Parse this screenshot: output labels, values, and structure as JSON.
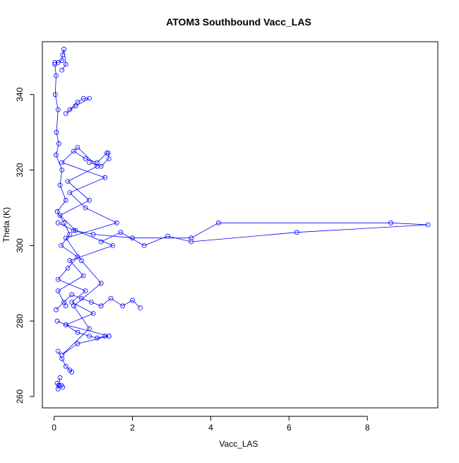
{
  "chart_data": {
    "type": "scatter",
    "title": "ATOM3 Southbound Vacc_LAS",
    "xlabel": "Vacc_LAS",
    "ylabel": "Theta (K)",
    "xlim": [
      -0.3,
      9.8
    ],
    "ylim": [
      257,
      354
    ],
    "xticks": [
      0,
      2,
      4,
      6,
      8
    ],
    "yticks": [
      260,
      280,
      300,
      320,
      340
    ],
    "grid": false,
    "legend": "none",
    "color": "#0000ff",
    "marker": "open-circle",
    "connected": true,
    "series": [
      {
        "x": [
          0.02,
          0.05,
          0.03,
          0.1,
          0.06,
          0.12,
          0.05,
          0.2,
          0.15,
          0.3,
          0.08,
          0.25,
          0.4,
          0.18,
          0.6,
          0.35,
          0.1,
          0.8,
          0.45,
          1.0,
          0.3,
          1.4,
          0.6,
          0.2,
          0.9,
          0.5,
          1.2,
          0.7,
          0.3,
          1.6,
          0.8,
          0.4,
          1.3,
          0.2,
          0.6,
          1.1,
          0.35,
          0.9,
          0.15,
          0.55,
          1.5,
          0.4,
          0.75,
          0.1,
          0.3
        ],
        "y": [
          348,
          345,
          340,
          336,
          330,
          327,
          324,
          320,
          316,
          312,
          309,
          306,
          303,
          300,
          297,
          294,
          291,
          288,
          285,
          282,
          279,
          276,
          274,
          271,
          278,
          284,
          290,
          296,
          302,
          306,
          310,
          314,
          318,
          322,
          326,
          321,
          317,
          312,
          308,
          304,
          300,
          296,
          292,
          288,
          284
        ]
      },
      {
        "x": [
          0.1,
          0.5,
          1.0,
          2.0,
          3.5,
          4.2,
          8.6,
          9.55,
          6.2,
          3.5,
          2.9,
          2.3,
          1.7,
          1.2
        ],
        "y": [
          306,
          304,
          303,
          302,
          302,
          306,
          306,
          305.5,
          303.5,
          301,
          302.5,
          300,
          303.5,
          301
        ]
      },
      {
        "x": [
          0.05,
          0.25,
          0.45,
          0.7,
          0.95,
          1.2,
          1.45,
          1.75,
          2.0,
          2.2
        ],
        "y": [
          283,
          285,
          287,
          286,
          285,
          284,
          286,
          284,
          285.5,
          283.5
        ]
      },
      {
        "x": [
          0.08,
          0.3,
          0.6,
          0.9,
          1.1,
          1.3,
          1.4
        ],
        "y": [
          280,
          279,
          277,
          276,
          275.5,
          276,
          276
        ]
      },
      {
        "x": [
          0.1,
          0.2,
          0.3,
          0.4,
          0.45
        ],
        "y": [
          272,
          270,
          268,
          267,
          266.5
        ]
      },
      {
        "x": [
          0.15,
          0.12,
          0.1,
          0.08,
          0.18,
          0.22
        ],
        "y": [
          265,
          263,
          262,
          263.5,
          263,
          262.5
        ]
      },
      {
        "x": [
          0.02,
          0.1,
          0.2,
          0.22,
          0.25,
          0.3,
          0.2
        ],
        "y": [
          348.5,
          348.5,
          349,
          350.5,
          352,
          348,
          346.5
        ]
      },
      {
        "x": [
          0.4,
          0.6,
          0.75,
          0.9,
          0.55,
          0.3
        ],
        "y": [
          336,
          338,
          339,
          339,
          337,
          335
        ]
      },
      {
        "x": [
          0.5,
          0.8,
          1.1,
          1.35,
          1.38,
          1.4,
          1.2,
          0.9
        ],
        "y": [
          325,
          323,
          322,
          324.5,
          324.5,
          323,
          321,
          322
        ]
      }
    ]
  }
}
